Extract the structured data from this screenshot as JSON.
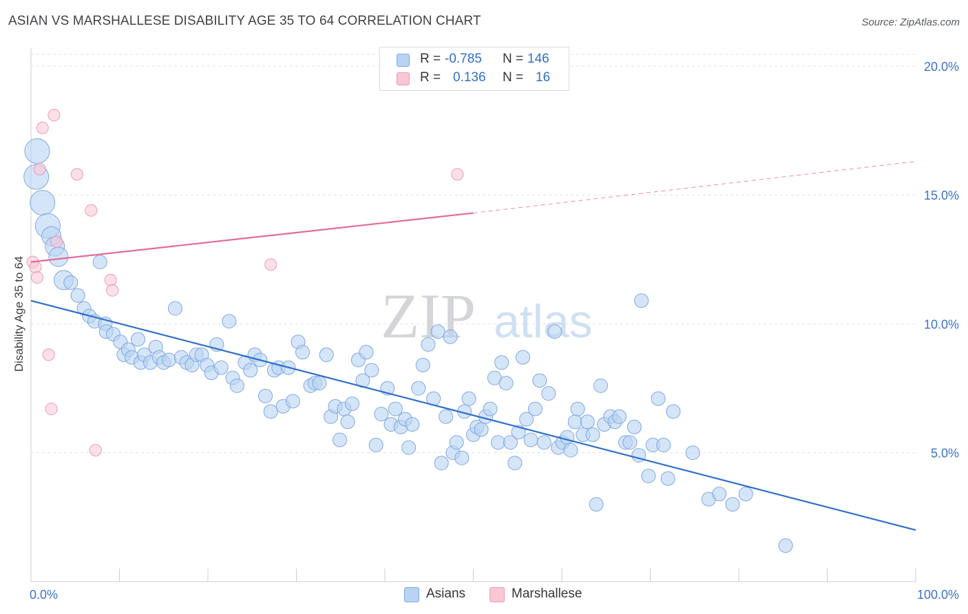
{
  "title": "ASIAN VS MARSHALLESE DISABILITY AGE 35 TO 64 CORRELATION CHART",
  "source": "Source: ZipAtlas.com",
  "watermark": {
    "zip": "ZIP",
    "atlas": "atlas"
  },
  "colors": {
    "asian_fill": "#b9d3f3",
    "asian_stroke": "#7ea7e0",
    "asian_line": "#2f6ec9",
    "marsh_fill": "#f9c6d4",
    "marsh_stroke": "#ec9ab2",
    "marsh_line": "#e36b93",
    "tick_label": "#3b73c8",
    "grid": "#dfe1e5"
  },
  "stats": [
    {
      "r_label": "R =",
      "r_value": "-0.785",
      "n_label": "N =",
      "n_value": "146"
    },
    {
      "r_label": "R =",
      "r_value": "0.136",
      "n_label": "N =",
      "n_value": "16"
    }
  ],
  "legend": {
    "asian": "Asians",
    "marsh": "Marshallese"
  },
  "chart_data": {
    "type": "scatter",
    "title": "ASIAN VS MARSHALLESE DISABILITY AGE 35 TO 64 CORRELATION CHART",
    "xlabel": "",
    "ylabel": "Disability Age 35 to 64",
    "xlim": [
      0,
      100
    ],
    "ylim": [
      0,
      20.8
    ],
    "x_tick_labels": [
      "0.0%",
      "100.0%"
    ],
    "y_ticks": [
      5,
      10,
      15,
      20
    ],
    "y_tick_labels": [
      "5.0%",
      "10.0%",
      "15.0%",
      "20.0%"
    ],
    "grid": true,
    "legend_position": "bottom",
    "series": [
      {
        "name": "Asians",
        "points": [
          [
            0.7,
            16.7,
            3
          ],
          [
            0.6,
            15.7,
            3
          ],
          [
            1.3,
            14.7,
            3
          ],
          [
            1.9,
            13.8,
            3
          ],
          [
            2.3,
            13.4,
            2
          ],
          [
            2.7,
            13.0,
            2
          ],
          [
            3.1,
            12.6,
            2
          ],
          [
            3.7,
            11.7,
            2
          ],
          [
            4.5,
            11.6,
            1
          ],
          [
            5.3,
            11.1,
            1
          ],
          [
            6.0,
            10.6,
            1
          ],
          [
            6.6,
            10.3,
            1
          ],
          [
            7.2,
            10.1,
            1
          ],
          [
            7.8,
            12.4,
            1
          ],
          [
            8.4,
            10.0,
            1
          ],
          [
            8.5,
            9.7,
            1
          ],
          [
            9.3,
            9.6,
            1
          ],
          [
            10.1,
            9.3,
            1
          ],
          [
            10.5,
            8.8,
            1
          ],
          [
            11.0,
            9.0,
            1
          ],
          [
            11.4,
            8.7,
            1
          ],
          [
            12.1,
            9.4,
            1
          ],
          [
            12.4,
            8.5,
            1
          ],
          [
            12.8,
            8.8,
            1
          ],
          [
            13.5,
            8.5,
            1
          ],
          [
            14.1,
            9.1,
            1
          ],
          [
            14.5,
            8.7,
            1
          ],
          [
            15.0,
            8.5,
            1
          ],
          [
            15.6,
            8.6,
            1
          ],
          [
            16.3,
            10.6,
            1
          ],
          [
            17.0,
            8.7,
            1
          ],
          [
            17.6,
            8.5,
            1
          ],
          [
            18.2,
            8.4,
            1
          ],
          [
            18.7,
            8.8,
            1
          ],
          [
            19.3,
            8.8,
            1
          ],
          [
            19.9,
            8.4,
            1
          ],
          [
            20.4,
            8.1,
            1
          ],
          [
            21.0,
            9.2,
            1
          ],
          [
            21.5,
            8.3,
            1
          ],
          [
            22.4,
            10.1,
            1
          ],
          [
            22.8,
            7.9,
            1
          ],
          [
            23.3,
            7.6,
            1
          ],
          [
            24.2,
            8.5,
            1
          ],
          [
            24.8,
            8.2,
            1
          ],
          [
            25.3,
            8.8,
            1
          ],
          [
            25.9,
            8.6,
            1
          ],
          [
            26.5,
            7.2,
            1
          ],
          [
            27.1,
            6.6,
            1
          ],
          [
            27.5,
            8.2,
            1
          ],
          [
            28.0,
            8.3,
            1
          ],
          [
            28.5,
            6.8,
            1
          ],
          [
            29.1,
            8.3,
            1
          ],
          [
            29.6,
            7.0,
            1
          ],
          [
            30.2,
            9.3,
            1
          ],
          [
            30.7,
            8.9,
            1
          ],
          [
            31.6,
            7.6,
            1
          ],
          [
            32.1,
            7.7,
            1
          ],
          [
            32.6,
            7.7,
            1
          ],
          [
            33.4,
            8.8,
            1
          ],
          [
            33.9,
            6.4,
            1
          ],
          [
            34.4,
            6.8,
            1
          ],
          [
            34.9,
            5.5,
            1
          ],
          [
            35.4,
            6.7,
            1
          ],
          [
            35.8,
            6.2,
            1
          ],
          [
            36.3,
            6.9,
            1
          ],
          [
            37.0,
            8.6,
            1
          ],
          [
            37.5,
            7.8,
            1
          ],
          [
            37.9,
            8.9,
            1
          ],
          [
            38.5,
            8.2,
            1
          ],
          [
            39.0,
            5.3,
            1
          ],
          [
            39.6,
            6.5,
            1
          ],
          [
            40.3,
            7.5,
            1
          ],
          [
            40.7,
            6.1,
            1
          ],
          [
            41.2,
            6.7,
            1
          ],
          [
            41.8,
            6.0,
            1
          ],
          [
            42.3,
            6.3,
            1
          ],
          [
            42.7,
            5.2,
            1
          ],
          [
            43.1,
            6.1,
            1
          ],
          [
            43.8,
            7.5,
            1
          ],
          [
            44.3,
            8.4,
            1
          ],
          [
            44.9,
            9.2,
            1
          ],
          [
            45.5,
            7.1,
            1
          ],
          [
            46.0,
            9.7,
            1
          ],
          [
            46.4,
            4.6,
            1
          ],
          [
            46.9,
            6.4,
            1
          ],
          [
            47.4,
            9.5,
            1
          ],
          [
            47.7,
            5.0,
            1
          ],
          [
            48.1,
            5.4,
            1
          ],
          [
            48.7,
            4.8,
            1
          ],
          [
            49.0,
            6.6,
            1
          ],
          [
            49.5,
            7.1,
            1
          ],
          [
            50.0,
            5.7,
            1
          ],
          [
            50.4,
            6.0,
            1
          ],
          [
            50.9,
            5.9,
            1
          ],
          [
            51.4,
            6.4,
            1
          ],
          [
            51.9,
            6.7,
            1
          ],
          [
            52.4,
            7.9,
            1
          ],
          [
            52.8,
            5.4,
            1
          ],
          [
            53.2,
            8.5,
            1
          ],
          [
            53.7,
            7.7,
            1
          ],
          [
            54.2,
            5.4,
            1
          ],
          [
            54.7,
            4.6,
            1
          ],
          [
            55.1,
            5.8,
            1
          ],
          [
            55.6,
            8.7,
            1
          ],
          [
            56.0,
            6.3,
            1
          ],
          [
            56.5,
            5.5,
            1
          ],
          [
            57.0,
            6.7,
            1
          ],
          [
            57.5,
            7.8,
            1
          ],
          [
            58.0,
            5.4,
            1
          ],
          [
            58.5,
            7.3,
            1
          ],
          [
            59.2,
            9.7,
            1
          ],
          [
            59.6,
            5.2,
            1
          ],
          [
            60.1,
            5.4,
            1
          ],
          [
            60.6,
            5.6,
            1
          ],
          [
            61.0,
            5.1,
            1
          ],
          [
            61.5,
            6.2,
            1
          ],
          [
            61.8,
            6.7,
            1
          ],
          [
            62.4,
            5.7,
            1
          ],
          [
            62.9,
            6.2,
            1
          ],
          [
            63.5,
            5.7,
            1
          ],
          [
            63.9,
            3.0,
            1
          ],
          [
            64.4,
            7.6,
            1
          ],
          [
            64.8,
            6.1,
            1
          ],
          [
            65.5,
            6.4,
            1
          ],
          [
            66.0,
            6.2,
            1
          ],
          [
            66.5,
            6.4,
            1
          ],
          [
            67.2,
            5.4,
            1
          ],
          [
            67.7,
            5.4,
            1
          ],
          [
            68.2,
            6.0,
            1
          ],
          [
            68.7,
            4.9,
            1
          ],
          [
            69.0,
            10.9,
            1
          ],
          [
            69.8,
            4.1,
            1
          ],
          [
            70.3,
            5.3,
            1
          ],
          [
            70.9,
            7.1,
            1
          ],
          [
            71.5,
            5.3,
            1
          ],
          [
            72.0,
            4.0,
            1
          ],
          [
            72.6,
            6.6,
            1
          ],
          [
            74.8,
            5.0,
            1
          ],
          [
            76.6,
            3.2,
            1
          ],
          [
            77.8,
            3.4,
            1
          ],
          [
            79.3,
            3.0,
            1
          ],
          [
            80.8,
            3.4,
            1
          ],
          [
            85.3,
            1.4,
            1
          ]
        ],
        "trend": {
          "x": [
            0,
            100
          ],
          "y": [
            10.9,
            2.0
          ]
        }
      },
      {
        "name": "Marshallese",
        "points": [
          [
            0.2,
            12.4
          ],
          [
            0.5,
            12.2
          ],
          [
            0.7,
            11.8
          ],
          [
            1.0,
            16.0
          ],
          [
            1.3,
            17.6
          ],
          [
            2.0,
            8.8
          ],
          [
            2.3,
            6.7
          ],
          [
            2.6,
            18.1
          ],
          [
            2.9,
            13.2
          ],
          [
            5.2,
            15.8
          ],
          [
            6.8,
            14.4
          ],
          [
            7.3,
            5.1
          ],
          [
            9.0,
            11.7
          ],
          [
            9.2,
            11.3
          ],
          [
            27.1,
            12.3
          ],
          [
            48.2,
            15.8
          ]
        ],
        "trend": {
          "x": [
            0,
            50,
            100
          ],
          "y": [
            12.4,
            14.3,
            16.3
          ]
        }
      }
    ]
  }
}
